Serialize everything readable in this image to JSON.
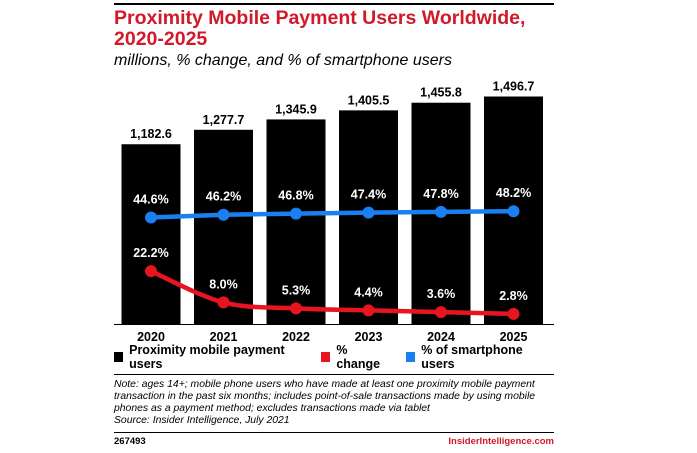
{
  "header": {
    "title": "Proximity Mobile Payment Users Worldwide, 2020-2025",
    "subtitle": "millions, % change, and % of smartphone users"
  },
  "chart_data": {
    "type": "bar",
    "categories": [
      "2020",
      "2021",
      "2022",
      "2023",
      "2024",
      "2025"
    ],
    "series": [
      {
        "name": "Proximity mobile payment users",
        "type": "bar",
        "color": "#000000",
        "values": [
          1182.6,
          1277.7,
          1345.9,
          1405.5,
          1455.8,
          1496.7
        ],
        "labels": [
          "1,182.6",
          "1,277.7",
          "1,345.9",
          "1,405.5",
          "1,455.8",
          "1,496.7"
        ]
      },
      {
        "name": "% change",
        "type": "line",
        "color": "#e8141f",
        "values": [
          22.2,
          8.0,
          5.3,
          4.4,
          3.6,
          2.8
        ],
        "labels": [
          "22.2%",
          "8.0%",
          "5.3%",
          "4.4%",
          "3.6%",
          "2.8%"
        ]
      },
      {
        "name": "% of smartphone users",
        "type": "line",
        "color": "#1a7ff0",
        "values": [
          44.6,
          46.2,
          46.8,
          47.4,
          47.8,
          48.2
        ],
        "labels": [
          "44.6%",
          "46.2%",
          "46.8%",
          "47.4%",
          "47.8%",
          "48.2%"
        ]
      }
    ],
    "legend_position": "bottom",
    "grid": false
  },
  "legend": {
    "items": [
      {
        "label": "Proximity mobile payment users",
        "color": "#000000"
      },
      {
        "label": "% change",
        "color": "#e8141f"
      },
      {
        "label": "% of smartphone users",
        "color": "#1a7ff0"
      }
    ]
  },
  "notes": {
    "note": "Note: ages 14+; mobile phone users who have made at least one proximity mobile payment transaction in the past six months; includes point-of-sale transactions made by using mobile phones as a payment method; excludes transactions made via tablet",
    "source": "Source: Insider Intelligence, July 2021"
  },
  "footer": {
    "id": "267493",
    "brand": "InsiderIntelligence.com"
  }
}
